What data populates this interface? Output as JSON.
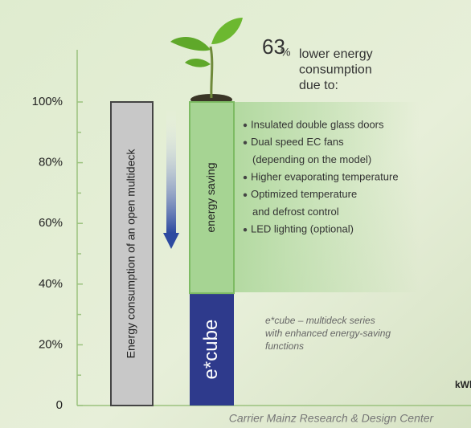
{
  "chart_data": {
    "type": "stacked-bar",
    "headline": {
      "value": "63",
      "unit": "%",
      "lines": [
        "lower energy",
        "consumption",
        "due to:"
      ]
    },
    "bullets": [
      [
        "Insulated double glass doors"
      ],
      [
        "Dual speed EC fans",
        "(depending on the model)"
      ],
      [
        "Higher evaporating temperature"
      ],
      [
        "Optimized temperature",
        "and defrost control"
      ],
      [
        "LED lighting (optional)"
      ]
    ],
    "note": [
      "e*cube – multideck series",
      "with enhanced energy-saving",
      "functions"
    ],
    "x_unit": "kWh",
    "footer": "Carrier Mainz Research & Design Center",
    "ylim": [
      0,
      100
    ],
    "yticks": [
      0,
      {
        "value": 20,
        "label": "20%"
      },
      {
        "value": 40,
        "label": "40%"
      },
      {
        "value": 60,
        "label": "60%"
      },
      {
        "value": 80,
        "label": "80%"
      },
      {
        "value": 100,
        "label": "100%"
      }
    ],
    "yminor": [
      10,
      30,
      50,
      70,
      90
    ],
    "bars": [
      {
        "segments": [
          {
            "name": "Energy consumption of an open multideck",
            "value": 100,
            "color": "#c8c8c8"
          }
        ]
      },
      {
        "segments": [
          {
            "name": "e*cube",
            "value": 37,
            "color": "#2e3a8c"
          },
          {
            "name": "energy saving",
            "value": 63,
            "color": "#a6d493"
          }
        ]
      }
    ]
  }
}
